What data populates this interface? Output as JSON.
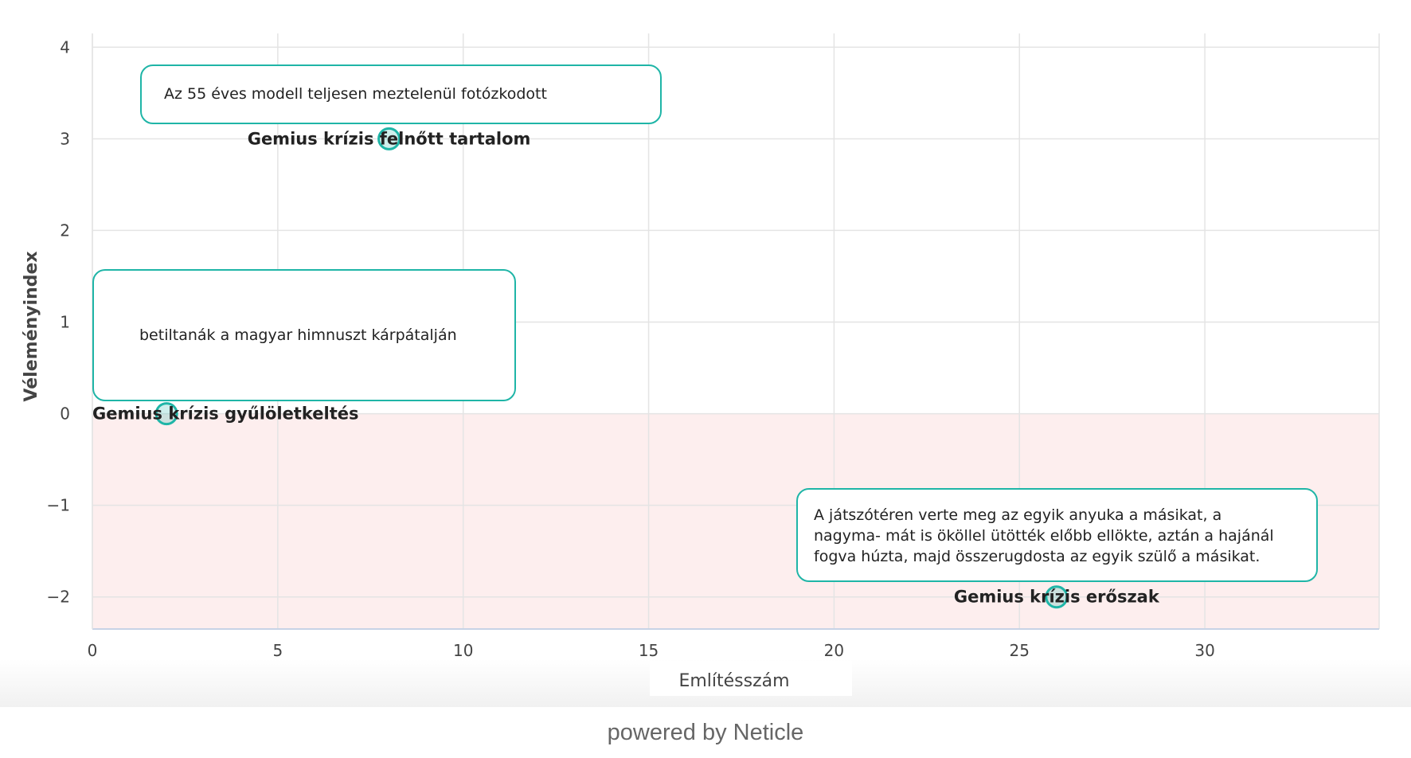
{
  "chart_data": {
    "type": "scatter",
    "xlabel": "Említésszám",
    "ylabel": "Véleményindex",
    "xlim": [
      0,
      34.7
    ],
    "ylim": [
      -2.35,
      4.15
    ],
    "x_ticks": [
      0,
      5,
      10,
      15,
      20,
      25,
      30
    ],
    "y_ticks": [
      -2,
      -1,
      0,
      1,
      2,
      3,
      4
    ],
    "y_tick_labels": [
      "−2",
      "−1",
      "0",
      "1",
      "2",
      "3",
      "4"
    ],
    "grid": true,
    "negative_band": {
      "from": -2.35,
      "to": 0,
      "color": "#fdeeee"
    },
    "colors": {
      "point": "#1fb5a7",
      "grid": "#e4e4e4",
      "axis": "#c8d3e6"
    },
    "points": [
      {
        "x": 8,
        "y": 3,
        "label": "Gemius krízis felnőtt tartalom",
        "tooltip": "Az 55 éves modell teljesen meztelenül fotózkodott"
      },
      {
        "x": 2,
        "y": 0,
        "label": "Gemius krízis gyűlöletkeltés",
        "tooltip": "betiltanák a magyar himnuszt kárpátalján"
      },
      {
        "x": 26,
        "y": -2,
        "label": "Gemius krízis erőszak",
        "tooltip": "A játszótéren verte meg az egyik anyuka a másikat, a nagyma- mát is ököllel ütötték előbb ellökte, aztán a hajánál fogva húzta, majd összerugdosta az egyik szülő a másikat."
      }
    ]
  },
  "footer": {
    "powered_by": "powered by Neticle"
  }
}
